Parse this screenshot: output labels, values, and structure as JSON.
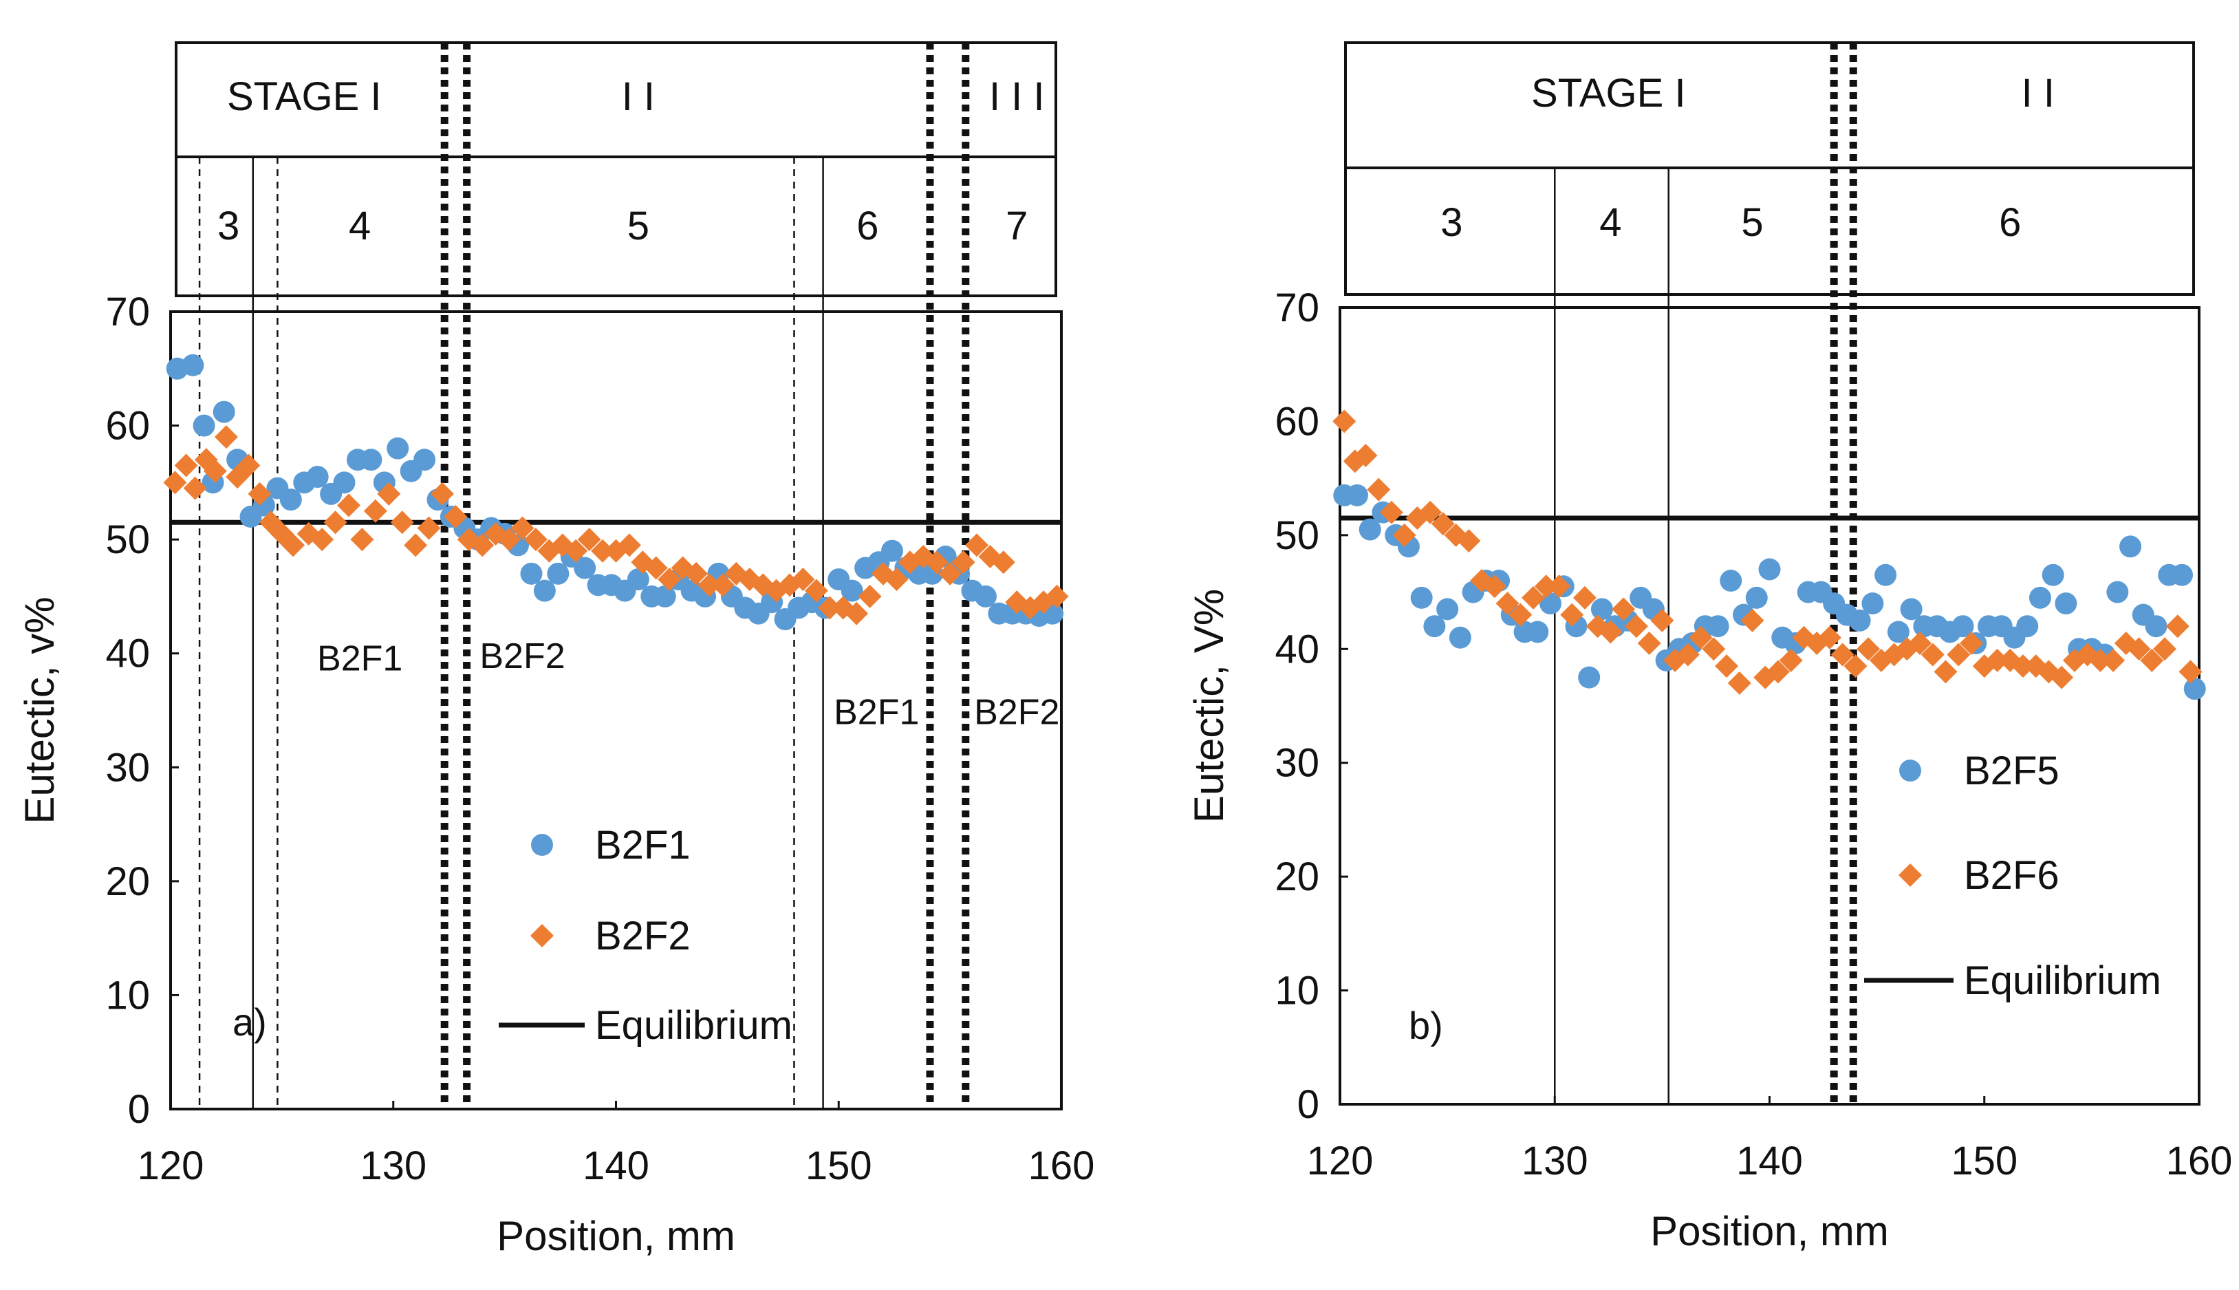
{
  "chart_data": [
    {
      "type": "scatter",
      "panel_label": "a)",
      "xlabel": "Position, mm",
      "ylabel": "Eutectic, v%",
      "xlim": [
        120,
        160
      ],
      "ylim": [
        0,
        70
      ],
      "x_ticks": [
        "120",
        "130",
        "140",
        "150",
        "160"
      ],
      "y_ticks": [
        "0",
        "10",
        "20",
        "30",
        "40",
        "50",
        "60",
        "70"
      ],
      "equilibrium": 51.5,
      "stages": [
        {
          "label": "STAGE I",
          "x": 126
        },
        {
          "label": "I I",
          "x": 141
        },
        {
          "label": "I I I",
          "x": 158
        }
      ],
      "stage_boundaries": [
        132.3,
        133.3,
        154.1,
        155.7
      ],
      "regions": [
        {
          "label": "3",
          "x": 122.6
        },
        {
          "label": "4",
          "x": 128.5
        },
        {
          "label": "5",
          "x": 141
        },
        {
          "label": "6",
          "x": 151.3
        },
        {
          "label": "7",
          "x": 158
        }
      ],
      "region_lines": [
        {
          "x": 121.3,
          "style": "dashed"
        },
        {
          "x": 123.7,
          "style": "solid"
        },
        {
          "x": 124.8,
          "style": "dashed"
        },
        {
          "x": 148.0,
          "style": "dashed"
        },
        {
          "x": 149.3,
          "style": "solid"
        }
      ],
      "alloy_labels": [
        {
          "text": "B2F1",
          "x": 128.5,
          "y": 38.5
        },
        {
          "text": "B2F2",
          "x": 135.8,
          "y": 38.7
        },
        {
          "text": "B2F1",
          "x": 151.7,
          "y": 33.8
        },
        {
          "text": "B2F2",
          "x": 158.0,
          "y": 33.8
        }
      ],
      "legend": [
        {
          "kind": "circle",
          "label": "B2F1"
        },
        {
          "kind": "diamond",
          "label": "B2F2"
        },
        {
          "kind": "line",
          "label": "Equilibrium"
        }
      ],
      "series": [
        {
          "name": "B2F1",
          "color": "#5B9BD5",
          "marker": "circle",
          "x": [
            120.3,
            121.0,
            121.5,
            121.9,
            122.4,
            123.0,
            123.6,
            124.2,
            124.8,
            125.4,
            126.0,
            126.6,
            127.2,
            127.8,
            128.4,
            129.0,
            129.6,
            130.2,
            130.8,
            131.4,
            132.0,
            132.6,
            133.2,
            133.8,
            134.4,
            135.0,
            135.6,
            136.2,
            136.8,
            137.4,
            138.0,
            138.6,
            139.2,
            139.8,
            140.4,
            141.0,
            141.6,
            142.2,
            142.8,
            143.4,
            144.0,
            144.6,
            145.2,
            145.8,
            146.4,
            147.0,
            147.6,
            148.2,
            148.8,
            149.4,
            150.0,
            150.6,
            151.2,
            151.8,
            152.4,
            153.0,
            153.6,
            154.2,
            154.8,
            155.4,
            156.0,
            156.6,
            157.2,
            157.8,
            158.4,
            159.0,
            159.6
          ],
          "values": [
            65.0,
            65.3,
            60.0,
            55.0,
            61.2,
            57.0,
            52.0,
            53.0,
            54.5,
            53.5,
            55.0,
            55.5,
            54.0,
            55.0,
            57.0,
            57.0,
            55.0,
            58.0,
            56.0,
            57.0,
            53.5,
            52.0,
            51.0,
            50.0,
            51.0,
            50.5,
            49.5,
            47.0,
            45.5,
            47.0,
            48.5,
            47.5,
            46.0,
            46.0,
            45.5,
            46.5,
            45.0,
            45.0,
            46.5,
            45.5,
            45.0,
            47.0,
            45.0,
            44.0,
            43.5,
            44.5,
            43.0,
            44.0,
            44.5,
            44.0,
            46.5,
            45.5,
            47.5,
            48.0,
            49.0,
            47.5,
            47.0,
            47.0,
            48.5,
            47.0,
            45.5,
            45.0,
            43.5,
            43.5,
            43.5,
            43.3,
            43.5
          ]
        },
        {
          "name": "B2F2",
          "color": "#ED7D31",
          "marker": "diamond",
          "x": [
            120.2,
            120.7,
            121.1,
            121.6,
            122.0,
            122.5,
            123.0,
            123.5,
            124.0,
            124.5,
            125.0,
            125.5,
            126.2,
            126.8,
            127.4,
            128.0,
            128.6,
            129.2,
            129.8,
            130.4,
            131.0,
            131.6,
            132.2,
            132.8,
            133.4,
            134.0,
            134.6,
            135.2,
            135.8,
            136.4,
            137.0,
            137.6,
            138.2,
            138.8,
            139.4,
            140.0,
            140.6,
            141.2,
            141.8,
            142.4,
            143.0,
            143.6,
            144.2,
            144.8,
            145.4,
            146.0,
            146.6,
            147.2,
            147.8,
            148.4,
            149.0,
            149.6,
            150.2,
            150.8,
            151.4,
            152.0,
            152.6,
            153.2,
            153.8,
            154.4,
            155.0,
            155.6,
            156.2,
            156.8,
            157.4,
            158.0,
            158.6,
            159.2,
            159.8
          ],
          "values": [
            55.0,
            56.5,
            54.5,
            57.0,
            56.0,
            59.0,
            55.5,
            56.5,
            54.0,
            51.5,
            50.5,
            49.5,
            50.5,
            50.0,
            51.5,
            53.0,
            50.0,
            52.5,
            54.0,
            51.5,
            49.5,
            51.0,
            54.0,
            52.0,
            50.0,
            49.5,
            50.5,
            50.0,
            51.0,
            50.0,
            49.0,
            49.5,
            49.0,
            50.0,
            49.0,
            49.0,
            49.5,
            48.0,
            47.5,
            46.5,
            47.5,
            47.0,
            46.0,
            46.0,
            47.0,
            46.5,
            46.0,
            45.5,
            46.0,
            46.5,
            45.5,
            44.0,
            44.0,
            43.5,
            45.0,
            47.0,
            46.5,
            48.0,
            48.5,
            48.0,
            47.0,
            48.0,
            49.5,
            48.5,
            48.0,
            44.5,
            44.0,
            44.5,
            45.0
          ]
        }
      ]
    },
    {
      "type": "scatter",
      "panel_label": "b)",
      "xlabel": "Position, mm",
      "ylabel": "Eutectic, V%",
      "xlim": [
        120,
        160
      ],
      "ylim": [
        0,
        70
      ],
      "x_ticks": [
        "120",
        "130",
        "140",
        "150",
        "160"
      ],
      "y_ticks": [
        "0",
        "10",
        "20",
        "30",
        "40",
        "50",
        "60",
        "70"
      ],
      "equilibrium": 51.5,
      "stages": [
        {
          "label": "STAGE I",
          "x": 132.5
        },
        {
          "label": "I I",
          "x": 152.5
        }
      ],
      "stage_boundaries": [
        143.0,
        143.9
      ],
      "regions": [
        {
          "label": "3",
          "x": 125.2
        },
        {
          "label": "4",
          "x": 132.6
        },
        {
          "label": "5",
          "x": 139.2
        },
        {
          "label": "6",
          "x": 151.2
        }
      ],
      "region_lines": [
        {
          "x": 130.0,
          "style": "solid"
        },
        {
          "x": 135.3,
          "style": "solid"
        }
      ],
      "alloy_labels": [],
      "legend": [
        {
          "kind": "circle",
          "label": "B2F5"
        },
        {
          "kind": "diamond",
          "label": "B2F6"
        },
        {
          "kind": "line",
          "label": "Equilibrium"
        }
      ],
      "series": [
        {
          "name": "B2F5",
          "color": "#5B9BD5",
          "marker": "circle",
          "x": [
            120.2,
            120.8,
            121.4,
            122.0,
            122.6,
            123.2,
            123.8,
            124.4,
            125.0,
            125.6,
            126.2,
            126.8,
            127.4,
            128.0,
            128.6,
            129.2,
            129.8,
            130.4,
            131.0,
            131.6,
            132.2,
            132.8,
            133.4,
            134.0,
            134.6,
            135.2,
            135.8,
            136.4,
            137.0,
            137.6,
            138.2,
            138.8,
            139.4,
            140.0,
            140.6,
            141.2,
            141.8,
            142.4,
            143.0,
            143.6,
            144.2,
            144.8,
            145.4,
            146.0,
            146.6,
            147.2,
            147.8,
            148.4,
            149.0,
            149.6,
            150.2,
            150.8,
            151.4,
            152.0,
            152.6,
            153.2,
            153.8,
            154.4,
            155.0,
            155.6,
            156.2,
            156.8,
            157.4,
            158.0,
            158.6,
            159.2,
            159.8
          ],
          "values": [
            53.5,
            53.5,
            50.5,
            52.0,
            50.0,
            49.0,
            44.5,
            42.0,
            43.5,
            41.0,
            45.0,
            46.0,
            46.0,
            43.0,
            41.5,
            41.5,
            44.0,
            45.5,
            42.0,
            37.5,
            43.5,
            42.0,
            42.5,
            44.5,
            43.5,
            39.0,
            40.0,
            40.5,
            42.0,
            42.0,
            46.0,
            43.0,
            44.5,
            47.0,
            41.0,
            40.5,
            45.0,
            45.0,
            44.0,
            43.0,
            42.5,
            44.0,
            46.5,
            41.5,
            43.5,
            42.0,
            42.0,
            41.5,
            42.0,
            40.5,
            42.0,
            42.0,
            41.0,
            42.0,
            44.5,
            46.5,
            44.0,
            40.0,
            40.0,
            39.5,
            45.0,
            49.0,
            43.0,
            42.0,
            46.5,
            46.5,
            36.5
          ]
        },
        {
          "name": "B2F6",
          "color": "#ED7D31",
          "marker": "diamond",
          "x": [
            120.2,
            120.7,
            121.2,
            121.8,
            122.4,
            123.0,
            123.6,
            124.2,
            124.8,
            125.4,
            126.0,
            126.6,
            127.2,
            127.8,
            128.4,
            129.0,
            129.6,
            130.2,
            130.8,
            131.4,
            132.0,
            132.6,
            133.2,
            133.8,
            134.4,
            135.0,
            135.6,
            136.2,
            136.8,
            137.4,
            138.0,
            138.6,
            139.2,
            139.8,
            140.4,
            141.0,
            141.6,
            142.2,
            142.8,
            143.4,
            144.0,
            144.6,
            145.2,
            145.8,
            146.4,
            147.0,
            147.6,
            148.2,
            148.8,
            149.4,
            150.0,
            150.6,
            151.2,
            151.8,
            152.4,
            153.0,
            153.6,
            154.2,
            154.8,
            155.4,
            156.0,
            156.6,
            157.2,
            157.8,
            158.4,
            159.0,
            159.6
          ],
          "values": [
            60.0,
            56.5,
            57.0,
            54.0,
            52.0,
            50.0,
            51.5,
            52.0,
            51.0,
            50.0,
            49.5,
            46.0,
            45.5,
            44.0,
            43.0,
            44.5,
            45.5,
            45.5,
            43.0,
            44.5,
            42.0,
            41.5,
            43.5,
            42.0,
            40.5,
            42.5,
            39.0,
            39.5,
            41.0,
            40.0,
            38.5,
            37.0,
            42.5,
            37.5,
            38.0,
            39.0,
            41.0,
            40.5,
            41.0,
            39.5,
            38.5,
            40.0,
            39.0,
            39.5,
            40.0,
            40.5,
            39.5,
            38.0,
            39.5,
            40.5,
            38.5,
            39.0,
            39.0,
            38.5,
            38.5,
            38.0,
            37.5,
            39.0,
            39.5,
            39.0,
            39.0,
            40.5,
            40.0,
            39.0,
            40.0,
            42.0,
            38.0
          ]
        }
      ]
    }
  ]
}
